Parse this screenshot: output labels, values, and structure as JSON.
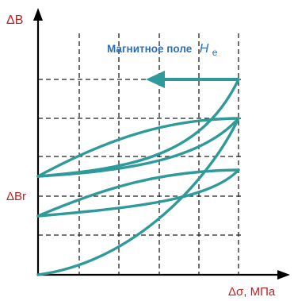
{
  "diagram": {
    "y_axis_label": "ΔB",
    "y_marker_label": "ΔBr",
    "x_axis_label": "Δσ, МПа",
    "field_label": "Магнитное поле",
    "field_symbol": "H",
    "field_subscript": "e"
  },
  "colors": {
    "curve": "#2e9a9a",
    "axis_labels": "#c02020",
    "field_label": "#2b6fb8",
    "grid": "#222222"
  }
}
